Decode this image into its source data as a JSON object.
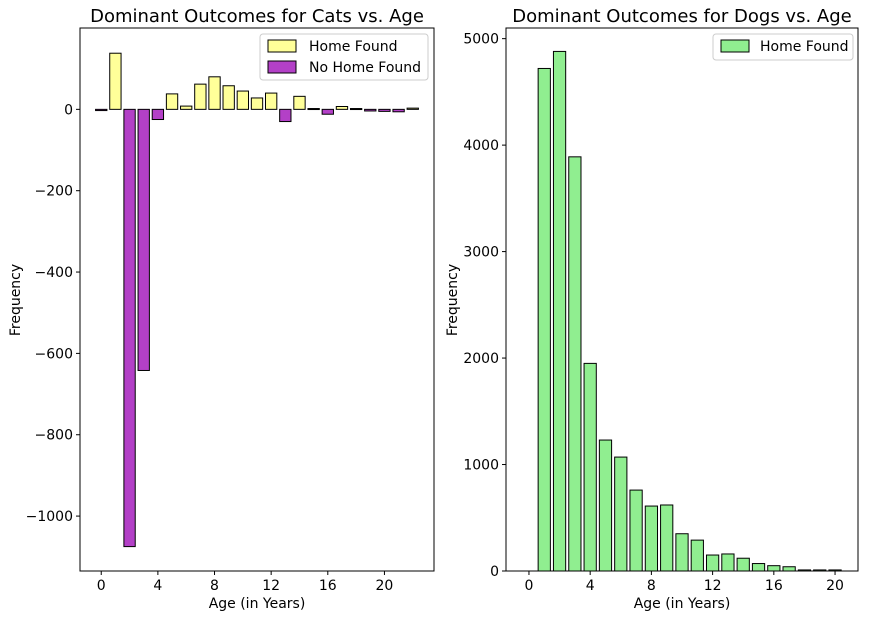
{
  "chart_data": [
    {
      "type": "bar",
      "title": "Dominant Outcomes for Cats vs. Age",
      "xlabel": "Age (in Years)",
      "ylabel": "Frequency",
      "xlim": [
        -1.5,
        23.5
      ],
      "ylim": [
        -1135,
        200
      ],
      "xticks": [
        0,
        4,
        8,
        12,
        16,
        20
      ],
      "yticks": [
        0,
        -200,
        -400,
        -600,
        -800,
        -1000
      ],
      "ytick_labels": [
        "0",
        "−200",
        "−400",
        "−600",
        "−800",
        "−1000"
      ],
      "legend_position": "upper right",
      "x": [
        0,
        1,
        2,
        3,
        4,
        5,
        6,
        7,
        8,
        9,
        10,
        11,
        12,
        13,
        14,
        15,
        16,
        17,
        18,
        19,
        20,
        21,
        22
      ],
      "values": [
        -3,
        138,
        -1075,
        -642,
        -25,
        38,
        8,
        62,
        80,
        58,
        45,
        28,
        40,
        -30,
        32,
        2,
        -12,
        7,
        2,
        -4,
        -5,
        -6,
        3
      ],
      "series": [
        {
          "name": "Home Found",
          "color": "#ffff99"
        },
        {
          "name": "No Home Found",
          "color": "#b340c7"
        }
      ]
    },
    {
      "type": "bar",
      "title": "Dominant Outcomes for Dogs vs. Age",
      "xlabel": "Age (in Years)",
      "ylabel": "Frequency",
      "xlim": [
        -1.5,
        21.5
      ],
      "ylim": [
        0,
        5100
      ],
      "xticks": [
        0,
        4,
        8,
        12,
        16,
        20
      ],
      "yticks": [
        0,
        1000,
        2000,
        3000,
        4000,
        5000
      ],
      "legend_position": "upper right",
      "x": [
        1,
        2,
        3,
        4,
        5,
        6,
        7,
        8,
        9,
        10,
        11,
        12,
        13,
        14,
        15,
        16,
        17,
        18,
        19,
        20
      ],
      "series": [
        {
          "name": "Home Found",
          "color": "#90ee90",
          "values": [
            4720,
            4880,
            3890,
            1950,
            1230,
            1070,
            760,
            610,
            620,
            350,
            290,
            150,
            160,
            120,
            70,
            50,
            40,
            10,
            10,
            10
          ]
        }
      ]
    }
  ]
}
